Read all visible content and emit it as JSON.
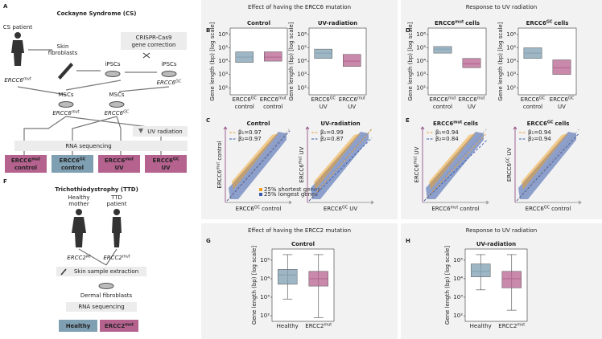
{
  "panel_labels": [
    "A",
    "B",
    "C",
    "D",
    "E",
    "F",
    "G",
    "H"
  ],
  "headers": [
    "Effect of having the ERCC6 mutation",
    "Response to UV radiation",
    "Effect of having the ERCC2 mutation",
    "Response to UV radiation"
  ],
  "section_a": {
    "title": "Cockayne Syndrome (CS)",
    "patient": "CS patient",
    "fibroblasts": [
      "Skin",
      "fibroblasts"
    ],
    "crispr": [
      "CRISPR-Cas9",
      "gene correction"
    ],
    "ipscs": [
      "iPSCs",
      "iPSCs"
    ],
    "mscs": [
      "MSCs",
      "MSCs"
    ],
    "genotypes": [
      {
        "base": "ERCC6",
        "sup": "mut"
      },
      {
        "base": "ERCC6",
        "sup": "GC"
      },
      {
        "base": "ERCC6",
        "sup": "mut"
      },
      {
        "base": "ERCC6",
        "sup": "GC"
      }
    ],
    "uv": "UV radiation",
    "rna": "RNA sequencing",
    "groups": [
      {
        "base": "ERCC6",
        "sup": "mut",
        "suffix": "control",
        "color": "#b5628f"
      },
      {
        "base": "ERCC6",
        "sup": "GC",
        "suffix": "control",
        "color": "#7f9fb2"
      },
      {
        "base": "ERCC6",
        "sup": "mut",
        "suffix": "UV",
        "color": "#b5628f"
      },
      {
        "base": "ERCC6",
        "sup": "GC",
        "suffix": "UV",
        "color": "#b5628f"
      }
    ]
  },
  "section_f": {
    "title": "Trichothiodystrophy (TTD)",
    "parents": [
      [
        "Healthy",
        "mother"
      ],
      [
        "TTD",
        "patient"
      ]
    ],
    "genotypes": [
      {
        "base": "ERCC2",
        "sup": "wt"
      },
      {
        "base": "ERCC2",
        "sup": "mut"
      }
    ],
    "extraction": "Skin sample extraction",
    "fibroblasts": "Dermal fibroblasts",
    "rna": "RNA sequencing",
    "groups": [
      {
        "base": "Healthy",
        "color": "#7f9fb2"
      },
      {
        "base": "ERCC2",
        "sup": "mut",
        "color": "#b5628f"
      }
    ]
  },
  "box_panels": [
    {
      "type": "box",
      "title": {
        "base": "Control"
      },
      "ylabel": "Gene length (bp) [log scale]",
      "log": true,
      "ylim": [
        30,
        3000000
      ],
      "yticks": [
        {
          "value": 100,
          "label": "10²"
        },
        {
          "value": 1000,
          "label": "10³"
        },
        {
          "value": 10000,
          "label": "10⁴"
        },
        {
          "value": 100000,
          "label": "10⁵"
        },
        {
          "value": 1000000,
          "label": "10⁶"
        }
      ],
      "categories": [
        {
          "base": "ERCC6",
          "sup": "GC",
          "suffix": "control"
        },
        {
          "base": "ERCC6",
          "sup": "mut",
          "suffix": "control"
        }
      ],
      "boxes": [
        {
          "q1": 8000,
          "median": 20000,
          "q3": 50000,
          "color": "#7f9fb2"
        },
        {
          "q1": 10000,
          "median": 20000,
          "q3": 50000,
          "color": "#b5628f"
        }
      ]
    },
    {
      "type": "box",
      "title": {
        "base": "UV-radiation"
      },
      "ylabel": "Gene length (bp) [log scale]",
      "log": true,
      "ylim": [
        30,
        3000000
      ],
      "yticks": [
        {
          "value": 100,
          "label": "10²"
        },
        {
          "value": 1000,
          "label": "10³"
        },
        {
          "value": 10000,
          "label": "10⁴"
        },
        {
          "value": 100000,
          "label": "10⁵"
        },
        {
          "value": 1000000,
          "label": "10⁶"
        }
      ],
      "categories": [
        {
          "base": "ERCC6",
          "sup": "GC",
          "suffix": "UV"
        },
        {
          "base": "ERCC6",
          "sup": "mut",
          "suffix": "UV"
        }
      ],
      "boxes": [
        {
          "q1": 16000,
          "median": 40000,
          "q3": 80000,
          "color": "#7f9fb2"
        },
        {
          "q1": 4000,
          "median": 10000,
          "q3": 32000,
          "color": "#b5628f"
        }
      ]
    },
    {
      "type": "box",
      "title": {
        "base": "ERCC6",
        "sup": "mut",
        "suffix": "cells"
      },
      "ylabel": "Gene length (bp) [log scale]",
      "log": true,
      "ylim": [
        30,
        3000000
      ],
      "yticks": [
        {
          "value": 100,
          "label": "10²"
        },
        {
          "value": 1000,
          "label": "10³"
        },
        {
          "value": 10000,
          "label": "10⁴"
        },
        {
          "value": 100000,
          "label": "10⁵"
        },
        {
          "value": 1000000,
          "label": "10⁶"
        }
      ],
      "categories": [
        {
          "base": "ERCC6",
          "sup": "mut",
          "suffix": "control"
        },
        {
          "base": "ERCC6",
          "sup": "mut",
          "suffix": "UV"
        }
      ],
      "boxes": [
        {
          "q1": 40000,
          "median": 80000,
          "q3": 125000,
          "color": "#7f9fb2"
        },
        {
          "q1": 3200,
          "median": 6300,
          "q3": 16000,
          "color": "#b5628f"
        }
      ]
    },
    {
      "type": "box",
      "title": {
        "base": "ERCC6",
        "sup": "GC",
        "suffix": "cells"
      },
      "ylabel": "Gene length (bp) [log scale]",
      "log": true,
      "ylim": [
        30,
        3000000
      ],
      "yticks": [
        {
          "value": 100,
          "label": "10²"
        },
        {
          "value": 1000,
          "label": "10³"
        },
        {
          "value": 10000,
          "label": "10⁴"
        },
        {
          "value": 100000,
          "label": "10⁵"
        },
        {
          "value": 1000000,
          "label": "10⁶"
        }
      ],
      "categories": [
        {
          "base": "ERCC6",
          "sup": "GC",
          "suffix": "control"
        },
        {
          "base": "ERCC6",
          "sup": "GC",
          "suffix": "UV"
        }
      ],
      "boxes": [
        {
          "q1": 16000,
          "median": 40000,
          "q3": 100000,
          "color": "#7f9fb2"
        },
        {
          "q1": 1000,
          "median": 3200,
          "q3": 12500,
          "color": "#b5628f"
        }
      ]
    },
    {
      "type": "box",
      "title": {
        "base": "Control"
      },
      "ylabel": "Gene length (bp) [log scale]",
      "log": true,
      "ylim": [
        50,
        400000
      ],
      "yticks": [
        {
          "value": 100,
          "label": "10²"
        },
        {
          "value": 1000,
          "label": "10³"
        },
        {
          "value": 10000,
          "label": "10⁴"
        },
        {
          "value": 100000,
          "label": "10⁵"
        }
      ],
      "categories": [
        {
          "base": "Healthy"
        },
        {
          "base": "ERCC2",
          "sup": "mut"
        }
      ],
      "boxes": [
        {
          "whisker_low": 800,
          "q1": 5000,
          "median": 16000,
          "q3": 32000,
          "whisker_high": 200000,
          "color": "#7f9fb2"
        },
        {
          "whisker_low": 80,
          "q1": 4000,
          "median": 10000,
          "q3": 25000,
          "whisker_high": 200000,
          "color": "#b5628f"
        }
      ]
    },
    {
      "type": "box",
      "title": {
        "base": "UV-radiation"
      },
      "ylabel": "Gene length (bp) [log scale]",
      "log": true,
      "ylim": [
        50,
        400000
      ],
      "yticks": [
        {
          "value": 100,
          "label": "10²"
        },
        {
          "value": 1000,
          "label": "10³"
        },
        {
          "value": 10000,
          "label": "10⁴"
        },
        {
          "value": 100000,
          "label": "10⁵"
        }
      ],
      "categories": [
        {
          "base": "Healthy"
        },
        {
          "base": "ERCC2",
          "sup": "mut"
        }
      ],
      "boxes": [
        {
          "whisker_low": 2500,
          "q1": 12500,
          "median": 25000,
          "q3": 63000,
          "whisker_high": 200000,
          "color": "#7f9fb2"
        },
        {
          "whisker_low": 200,
          "q1": 3200,
          "median": 10000,
          "q3": 25000,
          "whisker_high": 200000,
          "color": "#b5628f"
        }
      ]
    }
  ],
  "scatter_panels": [
    {
      "type": "scatter",
      "title": {
        "base": "Control"
      },
      "xlabel": {
        "base": "ERCC6",
        "sup": "GC",
        "suffix": "control"
      },
      "ylabel": {
        "base": "ERCC6",
        "sup": "mut",
        "suffix": "control"
      },
      "fits": [
        {
          "label": "β₁=0.97",
          "value": 0.97,
          "color": "#e8a33a"
        },
        {
          "label": "β₂=0.97",
          "value": 0.97,
          "color": "#3b5bab"
        }
      ],
      "gene_groups": [
        {
          "name": "25% shortest genes",
          "color": "#f0a020"
        },
        {
          "name": "25% longest genes",
          "color": "#3b5bab"
        }
      ]
    },
    {
      "type": "scatter",
      "title": {
        "base": "UV-radiation"
      },
      "xlabel": {
        "base": "ERCC6",
        "sup": "GC",
        "suffix": "UV"
      },
      "ylabel": {
        "base": "ERCC6",
        "sup": "mut",
        "suffix": "UV"
      },
      "fits": [
        {
          "label": "β₁=0.99",
          "value": 0.99,
          "color": "#e8a33a"
        },
        {
          "label": "β₂=0.87",
          "value": 0.87,
          "color": "#3b5bab"
        }
      ]
    },
    {
      "type": "scatter",
      "title": {
        "base": "ERCC6",
        "sup": "mut",
        "suffix": "cells"
      },
      "xlabel": {
        "base": "ERCC6",
        "sup": "mut",
        "suffix": "control"
      },
      "ylabel": {
        "base": "ERCC6",
        "sup": "mut",
        "suffix": "UV"
      },
      "fits": [
        {
          "label": "β₁=0.94",
          "value": 0.94,
          "color": "#e8a33a"
        },
        {
          "label": "β₂=0.84",
          "value": 0.84,
          "color": "#3b5bab"
        }
      ]
    },
    {
      "type": "scatter",
      "title": {
        "base": "ERCC6",
        "sup": "GC",
        "suffix": "cells"
      },
      "xlabel": {
        "base": "ERCC6",
        "sup": "GC",
        "suffix": "control"
      },
      "ylabel": {
        "base": "ERCC6",
        "sup": "GC",
        "suffix": "UV"
      },
      "fits": [
        {
          "label": "β₁=0.94",
          "value": 0.94,
          "color": "#e8a33a"
        },
        {
          "label": "β₂=0.94",
          "value": 0.94,
          "color": "#3b5bab"
        }
      ]
    }
  ]
}
